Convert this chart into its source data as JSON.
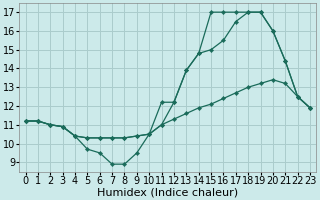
{
  "xlabel": "Humidex (Indice chaleur)",
  "bg_color": "#cceaea",
  "grid_color": "#aacccc",
  "line_color": "#1a6b5a",
  "xlim": [
    -0.5,
    23.5
  ],
  "ylim": [
    8.5,
    17.5
  ],
  "xticks": [
    0,
    1,
    2,
    3,
    4,
    5,
    6,
    7,
    8,
    9,
    10,
    11,
    12,
    13,
    14,
    15,
    16,
    17,
    18,
    19,
    20,
    21,
    22,
    23
  ],
  "yticks": [
    9,
    10,
    11,
    12,
    13,
    14,
    15,
    16,
    17
  ],
  "line1_x": [
    0,
    1,
    2,
    3,
    4,
    5,
    6,
    7,
    8,
    9,
    10,
    11,
    12,
    13,
    14,
    15,
    16,
    17,
    18,
    19,
    20,
    21,
    22,
    23
  ],
  "line1_y": [
    11.2,
    11.2,
    11.0,
    10.9,
    10.4,
    9.7,
    9.5,
    8.9,
    8.9,
    9.5,
    10.5,
    12.2,
    12.2,
    13.9,
    14.8,
    17.0,
    17.0,
    17.0,
    17.0,
    17.0,
    16.0,
    14.4,
    12.5,
    11.9
  ],
  "line2_x": [
    0,
    1,
    2,
    3,
    4,
    5,
    6,
    7,
    8,
    9,
    10,
    11,
    12,
    13,
    14,
    15,
    16,
    17,
    18,
    19,
    20,
    21,
    22,
    23
  ],
  "line2_y": [
    11.2,
    11.2,
    11.0,
    10.9,
    10.4,
    10.3,
    10.3,
    10.3,
    10.3,
    10.4,
    10.5,
    11.0,
    11.3,
    11.6,
    11.9,
    12.1,
    12.4,
    12.7,
    13.0,
    13.2,
    13.4,
    13.2,
    12.5,
    11.9
  ],
  "line3_x": [
    0,
    1,
    2,
    3,
    4,
    5,
    6,
    7,
    8,
    9,
    10,
    11,
    12,
    13,
    14,
    15,
    16,
    17,
    18,
    19,
    20,
    21,
    22,
    23
  ],
  "line3_y": [
    11.2,
    11.2,
    11.0,
    10.9,
    10.4,
    10.3,
    10.3,
    10.3,
    10.3,
    10.4,
    10.5,
    11.0,
    12.2,
    13.9,
    14.8,
    15.0,
    15.5,
    16.5,
    17.0,
    17.0,
    16.0,
    14.4,
    12.5,
    11.9
  ],
  "xlabel_fontsize": 8,
  "tick_fontsize": 7
}
